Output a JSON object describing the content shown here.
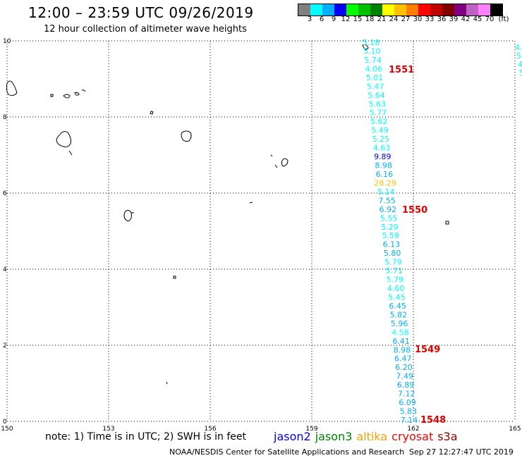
{
  "title": "12:00 – 23:59 UTC 09/26/2019",
  "subtitle": "12 hour collection of altimeter wave heights",
  "colorbar": {
    "colors": [
      "#808080",
      "#00ffff",
      "#00b0ff",
      "#0000ff",
      "#00ff00",
      "#00c000",
      "#008000",
      "#ffff00",
      "#ffc000",
      "#ff8000",
      "#ff0000",
      "#c00000",
      "#800000",
      "#800080",
      "#c060c0",
      "#ff80ff",
      "#000000"
    ],
    "labels": [
      "3",
      "6",
      "9",
      "12",
      "15",
      "18",
      "21",
      "24",
      "27",
      "30",
      "33",
      "36",
      "39",
      "42",
      "45",
      "70",
      "(ft)"
    ]
  },
  "axes": {
    "lon_ticks": [
      "150",
      "153",
      "156",
      "159",
      "162",
      "165"
    ],
    "lat_ticks": [
      "0",
      "2",
      "4",
      "6",
      "8",
      "10"
    ]
  },
  "swh": {
    "main_track": [
      "5.18",
      "5.10",
      "5.74",
      "4.06",
      "5.01",
      "5.47",
      "5.64",
      "5.63",
      "5.77",
      "5.62",
      "5.49",
      "5.25",
      "4.63",
      "9.89",
      "8.98",
      "6.16",
      "28.29",
      "5.14",
      "7.55",
      "6.92",
      "5.55",
      "5.29",
      "5.59",
      "6.13",
      "5.80",
      "5.79",
      "5.71",
      "5.79",
      "4.60",
      "5.45",
      "6.45",
      "5.82",
      "5.96",
      "4.58",
      "6.41",
      "8.98",
      "6.47",
      "6.20",
      "7.49",
      "6.89",
      "7.12",
      "6.09",
      "5.83",
      "7.14"
    ],
    "main_track_colors": [
      "#00ffff",
      "#00ffff",
      "#00ffff",
      "#00ffff",
      "#00ffff",
      "#00ffff",
      "#00ffff",
      "#00ffff",
      "#00ffff",
      "#00ffff",
      "#00ffff",
      "#00ffff",
      "#00ffff",
      "#0000ff",
      "#00b0ff",
      "#00b0ff",
      "#ffc000",
      "#00ffff",
      "#00b0ff",
      "#00b0ff",
      "#00ffff",
      "#00ffff",
      "#00ffff",
      "#00b0ff",
      "#00b0ff",
      "#00ffff",
      "#00ffff",
      "#00ffff",
      "#00ffff",
      "#00ffff",
      "#00b0ff",
      "#00b0ff",
      "#00b0ff",
      "#00ffff",
      "#00b0ff",
      "#00b0ff",
      "#00b0ff",
      "#00b0ff",
      "#00b0ff",
      "#00b0ff",
      "#00b0ff",
      "#00b0ff",
      "#00b0ff",
      "#00b0ff"
    ],
    "edge_track": [
      "4.",
      "5",
      "4",
      "5"
    ]
  },
  "passes": [
    "1551",
    "1550",
    "1549",
    "1548"
  ],
  "legend": [
    {
      "name": "jason2",
      "color": "#0000ff"
    },
    {
      "name": "jason3",
      "color": "#008000"
    },
    {
      "name": "altika",
      "color": "#ffa000"
    },
    {
      "name": "cryosat",
      "color": "#ff0000"
    },
    {
      "name": "s3a",
      "color": "#a00000"
    }
  ],
  "footer": {
    "note": "note: 1) Time is in UTC; 2) SWH is in feet",
    "credit": "NOAA/NESDIS Center for Satellite Applications and Research",
    "date": "Sep 27 12:27:47 UTC 2019"
  }
}
